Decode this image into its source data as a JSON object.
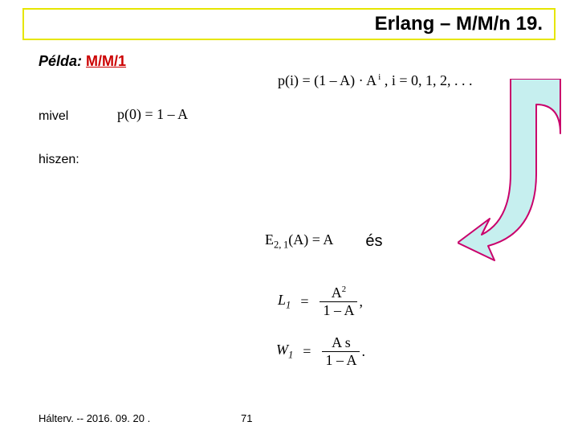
{
  "title": "Erlang – M/M/n  19.",
  "title_border_color": "#e6e600",
  "title_text_color": "#000000",
  "pelda_label": "Példa:",
  "pelda_value": "M/M/1",
  "pelda_value_color": "#cc0000",
  "eq_pi": "p(i) = (1 – A) · A<sup> i</sup> ,          i = 0, 1, 2, . . .",
  "mivel": "mivel",
  "eq_p0": "p(0) = 1 – A",
  "hiszen": "hiszen:",
  "es": {
    "eq": "E<sub>2, 1</sub>(A) = A",
    "label": "és"
  },
  "eq_L1": {
    "lhs": "L<sub>1</sub>",
    "eq": "=",
    "num": "A<sup>2</sup>",
    "den": "1 – A",
    "tail": " ,"
  },
  "eq_W1": {
    "lhs": "W<sub>1</sub>",
    "eq": "=",
    "num": "A s",
    "den": "1 – A",
    "tail": " ."
  },
  "arrow": {
    "fill": "#c6efef",
    "stroke": "#c9006b",
    "stroke_width": 2
  },
  "footer": "Hálterv. -- 2016. 09. 20 .",
  "page_number": "71"
}
